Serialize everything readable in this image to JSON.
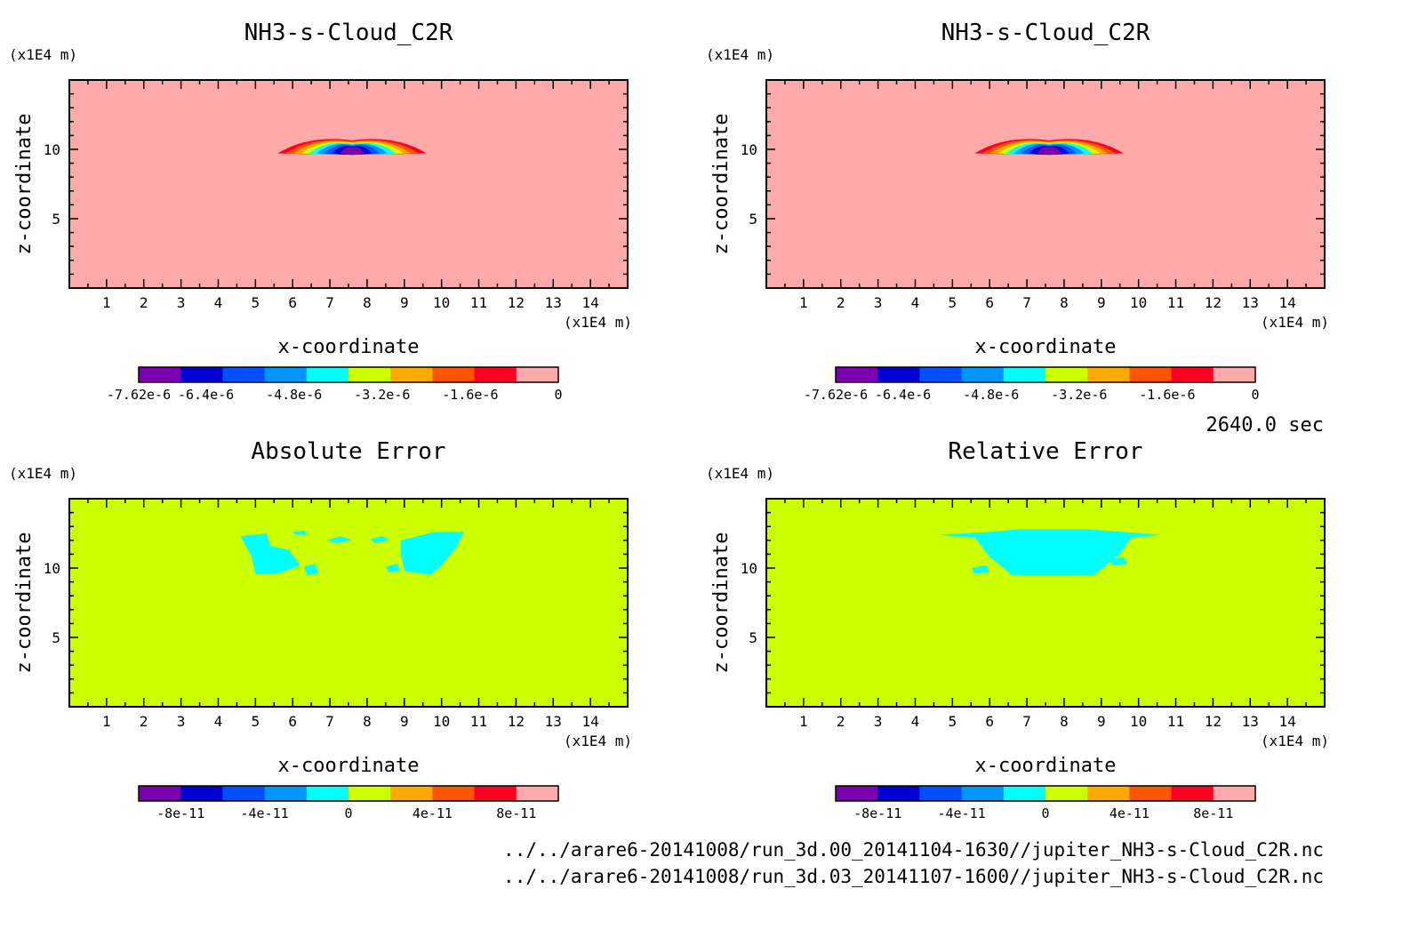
{
  "figure": {
    "time_label": "2640.0 sec",
    "footer_lines": [
      "../../arare6-20141008/run_3d.00_20141104-1630//jupiter_NH3-s-Cloud_C2R.nc",
      "../../arare6-20141008/run_3d.03_20141107-1600//jupiter_NH3-s-Cloud_C2R.nc"
    ]
  },
  "chart_data": [
    {
      "type": "heatmap",
      "title": "NH3-s-Cloud_C2R",
      "xlabel": "x-coordinate",
      "ylabel": "z-coordinate",
      "x_unit": "(x1E4 m)",
      "y_unit": "(x1E4 m)",
      "xlim": [
        0,
        15
      ],
      "ylim": [
        0,
        15
      ],
      "x_ticks": [
        "1",
        "2",
        "3",
        "4",
        "5",
        "6",
        "7",
        "8",
        "9",
        "10",
        "11",
        "12",
        "13",
        "14"
      ],
      "y_ticks": [
        "5",
        "10"
      ],
      "background_color": "#ffaaaa",
      "field": {
        "shape": "flattened lens cloud",
        "x_range": [
          5.6,
          9.6
        ],
        "z_range": [
          9.6,
          10.5
        ],
        "core": [
          7.6,
          9.8
        ],
        "min_value": -7.62e-06,
        "max_value": 0
      },
      "colorbar": {
        "colors": [
          "#7b00b0",
          "#0000d0",
          "#0050ff",
          "#0096ff",
          "#00ffff",
          "#ccff00",
          "#ffaa00",
          "#ff5500",
          "#ff0022",
          "#ffaaaa"
        ],
        "tick_labels": [
          "-7.62e-6",
          "-6.4e-6",
          "-4.8e-6",
          "-3.2e-6",
          "-1.6e-6",
          "0"
        ],
        "tick_values": [
          -7.62e-06,
          -6.4e-06,
          -4.8e-06,
          -3.2e-06,
          -1.6e-06,
          0
        ],
        "range": [
          -7.62e-06,
          0
        ]
      }
    },
    {
      "type": "heatmap",
      "title": "NH3-s-Cloud_C2R",
      "xlabel": "x-coordinate",
      "ylabel": "z-coordinate",
      "x_unit": "(x1E4 m)",
      "y_unit": "(x1E4 m)",
      "xlim": [
        0,
        15
      ],
      "ylim": [
        0,
        15
      ],
      "x_ticks": [
        "1",
        "2",
        "3",
        "4",
        "5",
        "6",
        "7",
        "8",
        "9",
        "10",
        "11",
        "12",
        "13",
        "14"
      ],
      "y_ticks": [
        "5",
        "10"
      ],
      "background_color": "#ffaaaa",
      "field": {
        "shape": "flattened lens cloud",
        "x_range": [
          5.6,
          9.6
        ],
        "z_range": [
          9.6,
          10.5
        ],
        "core": [
          7.6,
          9.8
        ],
        "min_value": -7.62e-06,
        "max_value": 0
      },
      "colorbar": {
        "colors": [
          "#7b00b0",
          "#0000d0",
          "#0050ff",
          "#0096ff",
          "#00ffff",
          "#ccff00",
          "#ffaa00",
          "#ff5500",
          "#ff0022",
          "#ffaaaa"
        ],
        "tick_labels": [
          "-7.62e-6",
          "-6.4e-6",
          "-4.8e-6",
          "-3.2e-6",
          "-1.6e-6",
          "0"
        ],
        "tick_values": [
          -7.62e-06,
          -6.4e-06,
          -4.8e-06,
          -3.2e-06,
          -1.6e-06,
          0
        ],
        "range": [
          -7.62e-06,
          0
        ]
      }
    },
    {
      "type": "heatmap",
      "title": "Absolute Error",
      "xlabel": "x-coordinate",
      "ylabel": "z-coordinate",
      "x_unit": "(x1E4 m)",
      "y_unit": "(x1E4 m)",
      "xlim": [
        0,
        15
      ],
      "ylim": [
        0,
        15
      ],
      "x_ticks": [
        "1",
        "2",
        "3",
        "4",
        "5",
        "6",
        "7",
        "8",
        "9",
        "10",
        "11",
        "12",
        "13",
        "14"
      ],
      "y_ticks": [
        "5",
        "10"
      ],
      "background_color": "#ccff00",
      "field": {
        "shape": "scattered patches",
        "patch_color": "#00ffff",
        "patches": [
          [
            [
              4.6,
              12.3
            ],
            [
              5.3,
              12.5
            ],
            [
              5.4,
              11.6
            ],
            [
              5.9,
              11.3
            ],
            [
              6.2,
              10.2
            ],
            [
              5.6,
              9.6
            ],
            [
              5.0,
              9.6
            ],
            [
              4.9,
              10.8
            ],
            [
              4.7,
              11.8
            ]
          ],
          [
            [
              8.9,
              12.0
            ],
            [
              9.8,
              12.6
            ],
            [
              10.6,
              12.6
            ],
            [
              10.4,
              11.5
            ],
            [
              10.0,
              10.2
            ],
            [
              9.7,
              9.5
            ],
            [
              9.0,
              9.8
            ],
            [
              8.9,
              11.0
            ]
          ],
          [
            [
              6.3,
              10.1
            ],
            [
              6.6,
              10.3
            ],
            [
              6.7,
              9.6
            ],
            [
              6.4,
              9.5
            ]
          ],
          [
            [
              6.9,
              12.0
            ],
            [
              7.3,
              12.3
            ],
            [
              7.6,
              12.0
            ],
            [
              7.2,
              11.8
            ]
          ],
          [
            [
              8.1,
              12.1
            ],
            [
              8.4,
              12.3
            ],
            [
              8.6,
              12.0
            ],
            [
              8.2,
              11.8
            ]
          ],
          [
            [
              8.5,
              10.1
            ],
            [
              8.8,
              10.3
            ],
            [
              8.9,
              9.8
            ],
            [
              8.6,
              9.7
            ]
          ],
          [
            [
              6.0,
              12.6
            ],
            [
              6.3,
              12.7
            ],
            [
              6.4,
              12.4
            ],
            [
              6.1,
              12.4
            ]
          ]
        ]
      },
      "colorbar": {
        "colors": [
          "#7b00b0",
          "#0000d0",
          "#0050ff",
          "#0096ff",
          "#00ffff",
          "#ccff00",
          "#ffaa00",
          "#ff5500",
          "#ff0022",
          "#ffaaaa"
        ],
        "tick_labels": [
          "-8e-11",
          "-4e-11",
          "0",
          "4e-11",
          "8e-11"
        ],
        "tick_values": [
          -8e-11,
          -4e-11,
          0,
          4e-11,
          8e-11
        ],
        "range": [
          -1e-10,
          1e-10
        ]
      }
    },
    {
      "type": "heatmap",
      "title": "Relative Error",
      "xlabel": "x-coordinate",
      "ylabel": "z-coordinate",
      "x_unit": "(x1E4 m)",
      "y_unit": "(x1E4 m)",
      "xlim": [
        0,
        15
      ],
      "ylim": [
        0,
        15
      ],
      "x_ticks": [
        "1",
        "2",
        "3",
        "4",
        "5",
        "6",
        "7",
        "8",
        "9",
        "10",
        "11",
        "12",
        "13",
        "14"
      ],
      "y_ticks": [
        "5",
        "10"
      ],
      "background_color": "#ccff00",
      "field": {
        "shape": "scattered patches",
        "patch_color": "#00ffff",
        "patches": [
          [
            [
              4.6,
              12.4
            ],
            [
              6.0,
              12.6
            ],
            [
              6.8,
              12.8
            ],
            [
              8.6,
              12.8
            ],
            [
              9.6,
              12.6
            ],
            [
              10.6,
              12.4
            ],
            [
              9.8,
              12.2
            ],
            [
              9.5,
              11.0
            ],
            [
              8.8,
              9.5
            ],
            [
              6.6,
              9.5
            ],
            [
              6.0,
              10.8
            ],
            [
              5.6,
              12.2
            ]
          ],
          [
            [
              5.5,
              10.0
            ],
            [
              5.9,
              10.2
            ],
            [
              6.0,
              9.7
            ],
            [
              5.6,
              9.6
            ]
          ],
          [
            [
              9.2,
              10.6
            ],
            [
              9.6,
              10.8
            ],
            [
              9.7,
              10.3
            ],
            [
              9.3,
              10.2
            ]
          ]
        ]
      },
      "colorbar": {
        "colors": [
          "#7b00b0",
          "#0000d0",
          "#0050ff",
          "#0096ff",
          "#00ffff",
          "#ccff00",
          "#ffaa00",
          "#ff5500",
          "#ff0022",
          "#ffaaaa"
        ],
        "tick_labels": [
          "-8e-11",
          "-4e-11",
          "0",
          "4e-11",
          "8e-11"
        ],
        "tick_values": [
          -8e-11,
          -4e-11,
          0,
          4e-11,
          8e-11
        ],
        "range": [
          -1e-10,
          1e-10
        ]
      }
    }
  ]
}
